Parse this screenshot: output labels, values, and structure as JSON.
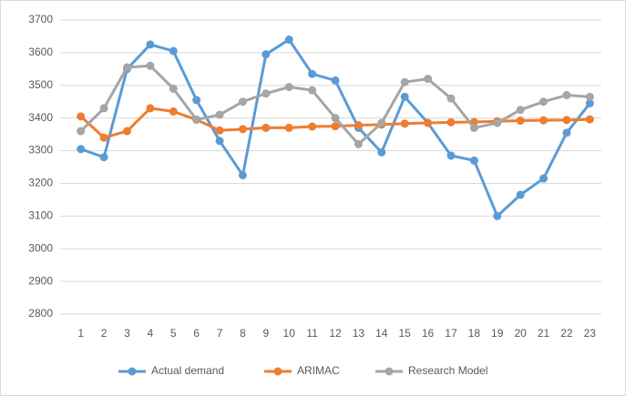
{
  "chart_data": {
    "type": "line",
    "categories": [
      "1",
      "2",
      "3",
      "4",
      "5",
      "6",
      "7",
      "8",
      "9",
      "10",
      "11",
      "12",
      "13",
      "14",
      "15",
      "16",
      "17",
      "18",
      "19",
      "20",
      "21",
      "22",
      "23"
    ],
    "series": [
      {
        "name": "Actual demand",
        "color": "#5b9bd5",
        "values": [
          3305,
          3280,
          3550,
          3625,
          3605,
          3455,
          3330,
          3225,
          3595,
          3640,
          3535,
          3515,
          3370,
          3295,
          3465,
          3385,
          3285,
          3270,
          3100,
          3165,
          3215,
          3355,
          3445
        ]
      },
      {
        "name": "ARIMAC",
        "color": "#ed7d31",
        "values": [
          3405,
          3340,
          3360,
          3430,
          3420,
          3395,
          3362,
          3366,
          3370,
          3370,
          3374,
          3375,
          3378,
          3380,
          3383,
          3385,
          3387,
          3388,
          3390,
          3392,
          3393,
          3394,
          3396
        ]
      },
      {
        "name": "Research Model",
        "color": "#a5a5a5",
        "values": [
          3360,
          3430,
          3555,
          3560,
          3490,
          3395,
          3410,
          3450,
          3475,
          3495,
          3485,
          3400,
          3320,
          3385,
          3510,
          3520,
          3460,
          3370,
          3385,
          3425,
          3450,
          3470,
          3465
        ]
      }
    ],
    "ylim": [
      2800,
      3700
    ],
    "yticks": [
      2800,
      2900,
      3000,
      3100,
      3200,
      3300,
      3400,
      3500,
      3600,
      3700
    ],
    "grid": true,
    "legend": "bottom"
  }
}
